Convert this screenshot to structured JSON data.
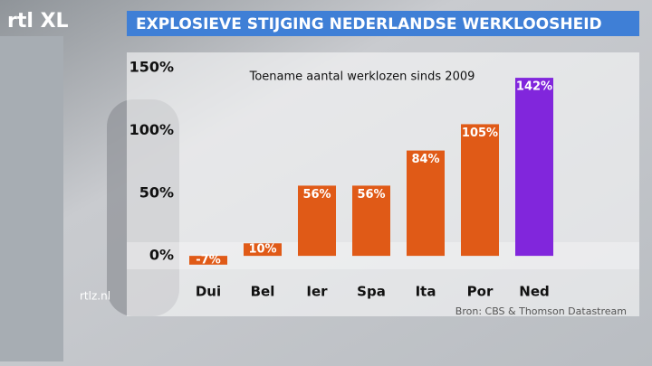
{
  "chart_data": {
    "type": "bar",
    "logo": "rtl XL",
    "title": "EXPLOSIEVE STIJGING NEDERLANDSE WERKLOOSHEID",
    "subtitle": "Toename aantal werklozen sinds 2009",
    "categories": [
      "Dui",
      "Bel",
      "Ier",
      "Spa",
      "Ita",
      "Por",
      "Ned"
    ],
    "values": [
      -7,
      10,
      56,
      56,
      84,
      105,
      142
    ],
    "value_labels": [
      "-7%",
      "10%",
      "56%",
      "56%",
      "84%",
      "105%",
      "142%"
    ],
    "colors": [
      "#e05a17",
      "#e05a17",
      "#e05a17",
      "#e05a17",
      "#e05a17",
      "#e05a17",
      "#8126dc"
    ],
    "ylim": [
      -10,
      150
    ],
    "yticks": [
      {
        "value": 0,
        "label": "0%"
      },
      {
        "value": 50,
        "label": "50%"
      },
      {
        "value": 100,
        "label": "100%"
      },
      {
        "value": 150,
        "label": "150%"
      }
    ],
    "grid": false,
    "watermark": "rtlz.nl",
    "source": "Bron: CBS & Thomson Datastream"
  }
}
